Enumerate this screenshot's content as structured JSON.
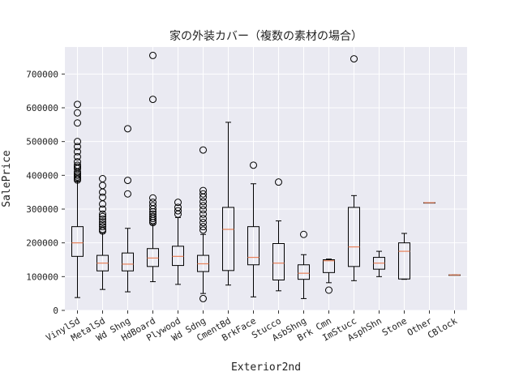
{
  "chart_data": {
    "type": "box",
    "title": "家の外装カバー（複数の素材の場合）",
    "xlabel": "Exterior2nd",
    "ylabel": "SalePrice",
    "ylim": [
      0,
      780000
    ],
    "yticks": [
      0,
      100000,
      200000,
      300000,
      400000,
      500000,
      600000,
      700000
    ],
    "ytick_labels": [
      "0",
      "100000",
      "200000",
      "300000",
      "400000",
      "500000",
      "600000",
      "700000"
    ],
    "grid": true,
    "colors": {
      "background": "#eaeaf2",
      "grid": "#ffffff",
      "box": "#000000",
      "median": "#e8825a"
    },
    "categories": [
      "VinylSd",
      "MetalSd",
      "Wd Shng",
      "HdBoard",
      "Plywood",
      "Wd Sdng",
      "CmentBd",
      "BrkFace",
      "Stucco",
      "AsbShng",
      "Brk Cmn",
      "ImStucc",
      "AsphShn",
      "Stone",
      "Other",
      "CBlock"
    ],
    "boxes": [
      {
        "category": "VinylSd",
        "whislo": 38000,
        "q1": 160000,
        "med": 200000,
        "q3": 248000,
        "whishi": 383000,
        "fliers": [
          610000,
          585000,
          555000,
          500000,
          485000,
          470000,
          455000,
          440000,
          430000,
          425000,
          420000,
          410000,
          405000,
          400000,
          395000,
          390000,
          386000
        ]
      },
      {
        "category": "MetalSd",
        "whislo": 62000,
        "q1": 117000,
        "med": 140000,
        "q3": 163000,
        "whishi": 230000,
        "fliers": [
          390000,
          370000,
          350000,
          335000,
          315000,
          300000,
          285000,
          278000,
          270000,
          262000,
          255000,
          248000,
          240000,
          235000
        ]
      },
      {
        "category": "Wd Shng",
        "whislo": 55000,
        "q1": 117000,
        "med": 137000,
        "q3": 170000,
        "whishi": 243000,
        "fliers": [
          538000,
          385000,
          345000
        ]
      },
      {
        "category": "HdBoard",
        "whislo": 85000,
        "q1": 130000,
        "med": 155000,
        "q3": 183000,
        "whishi": 255000,
        "fliers": [
          755000,
          625000,
          333000,
          320000,
          310000,
          300000,
          292000,
          285000,
          278000,
          272000,
          266000,
          260000
        ]
      },
      {
        "category": "Plywood",
        "whislo": 77000,
        "q1": 133000,
        "med": 160000,
        "q3": 190000,
        "whishi": 275000,
        "fliers": [
          320000,
          305000,
          295000,
          285000
        ]
      },
      {
        "category": "Wd Sdng",
        "whislo": 50000,
        "q1": 115000,
        "med": 138000,
        "q3": 163000,
        "whishi": 225000,
        "fliers": [
          475000,
          355000,
          345000,
          335000,
          322000,
          310000,
          298000,
          285000,
          272000,
          260000,
          248000,
          238000,
          35000
        ]
      },
      {
        "category": "CmentBd",
        "whislo": 75000,
        "q1": 118000,
        "med": 240000,
        "q3": 305000,
        "whishi": 557000,
        "fliers": []
      },
      {
        "category": "BrkFace",
        "whislo": 40000,
        "q1": 135000,
        "med": 157000,
        "q3": 248000,
        "whishi": 375000,
        "fliers": [
          430000
        ]
      },
      {
        "category": "Stucco",
        "whislo": 58000,
        "q1": 90000,
        "med": 140000,
        "q3": 198000,
        "whishi": 265000,
        "fliers": [
          380000
        ]
      },
      {
        "category": "AsbShng",
        "whislo": 35000,
        "q1": 92000,
        "med": 110000,
        "q3": 135000,
        "whishi": 165000,
        "fliers": [
          225000
        ]
      },
      {
        "category": "Brk Cmn",
        "whislo": 82000,
        "q1": 112000,
        "med": 147000,
        "q3": 150000,
        "whishi": 152000,
        "fliers": [
          60000
        ]
      },
      {
        "category": "ImStucc",
        "whislo": 88000,
        "q1": 130000,
        "med": 188000,
        "q3": 305000,
        "whishi": 340000,
        "fliers": [
          745000
        ]
      },
      {
        "category": "AsphShn",
        "whislo": 100000,
        "q1": 122000,
        "med": 140000,
        "q3": 157000,
        "whishi": 175000,
        "fliers": []
      },
      {
        "category": "Stone",
        "whislo": 92000,
        "q1": 93000,
        "med": 175000,
        "q3": 200000,
        "whishi": 228000,
        "fliers": []
      },
      {
        "category": "Other",
        "whislo": 319000,
        "q1": 319000,
        "med": 319000,
        "q3": 319000,
        "whishi": 319000,
        "fliers": []
      },
      {
        "category": "CBlock",
        "whislo": 105000,
        "q1": 105000,
        "med": 105000,
        "q3": 105000,
        "whishi": 105000,
        "fliers": []
      }
    ]
  }
}
